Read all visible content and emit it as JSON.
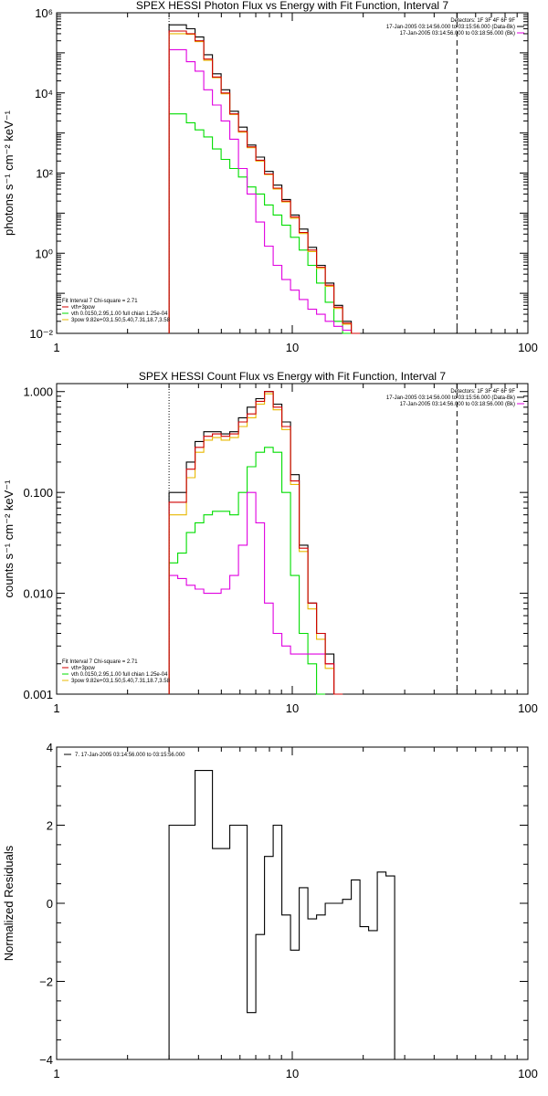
{
  "colors": {
    "data": "#000000",
    "total": "#d00000",
    "vth": "#00dd00",
    "pow": "#e000e0",
    "alt": "#e8b800"
  },
  "chart_data": [
    {
      "type": "line",
      "title": "SPEX HESSI Photon Flux vs Energy with Fit Function, Interval 7",
      "xlabel": "",
      "ylabel": "photons s⁻¹ cm⁻² keV⁻¹",
      "x_scale": "log",
      "y_scale": "log",
      "xlim": [
        1,
        100
      ],
      "ylim": [
        0.01,
        1000000
      ],
      "x_tick_labels": [
        "1",
        "10",
        "100"
      ],
      "y_tick_labels": [
        "10⁶",
        "10⁴",
        "10²",
        "10⁰",
        "10⁻²"
      ],
      "y_tick_values": [
        1000000,
        10000,
        100,
        1,
        0.01
      ],
      "energy_start": 3.0,
      "energy_step_ratio": 1.0885,
      "vertical_lines": [
        {
          "x": 3.0,
          "style": "dotted"
        },
        {
          "x": 50.0,
          "style": "dashed"
        }
      ],
      "legend_top": [
        "Detectors: 1F 3F 4F 6F 9F",
        "17-Jan-2005 03:14:56.000 to 03:15:56.000 (Data-Bk)",
        "17-Jan-2005 03:14:56.000 to 03:18:56.000 (Bk)"
      ],
      "legend_bottom": [
        "Fit Interval 7   Chi-square = 2.71",
        "vth+3pow",
        "vth 0.0150,2.95,1.00  full chian 1.25e-04",
        "3pow 9.82e+03,1.50,5.40,7.31,18.7,3.58"
      ],
      "series": [
        {
          "name": "17-Jan-2005 03:14:56.000 to 03:15:56.000 (Data-Bk)",
          "values": [
            500000,
            500000,
            400000,
            250000,
            90000,
            30000,
            12000,
            3500,
            1400,
            500,
            250,
            110,
            50,
            22,
            9,
            4,
            1.4,
            0.5,
            0.18,
            0.05,
            0.02,
            0.01
          ]
        },
        {
          "name": "vth+3pow",
          "values": [
            350000,
            350000,
            300000,
            200000,
            70000,
            25000,
            10000,
            3000,
            1100,
            450,
            210,
            95,
            42,
            20,
            8,
            3.3,
            1.2,
            0.45,
            0.16,
            0.045,
            0.018,
            0.009
          ]
        },
        {
          "name": "vth 0.0150,2.95,1.00  full chian 1.25e-04",
          "values": [
            3000,
            3000,
            1800,
            1200,
            800,
            400,
            220,
            130,
            80,
            45,
            30,
            16,
            9,
            5,
            2.5,
            1.2,
            0.5,
            0.18,
            0.06,
            0.02,
            0.01,
            0.005
          ]
        },
        {
          "name": "3pow 9.82e+03,1.50,5.40,7.31,18.7,3.58",
          "values": [
            120000,
            120000,
            60000,
            35000,
            12000,
            5000,
            2000,
            700,
            130,
            30,
            6,
            1.5,
            0.5,
            0.22,
            0.12,
            0.07,
            0.04,
            0.03,
            0.02,
            0.015,
            0.012,
            0.009
          ]
        },
        {
          "name": "",
          "values": [
            300000,
            300000,
            290000,
            190000,
            65000,
            24000,
            9500,
            2900,
            1050,
            430,
            200,
            92,
            40,
            19,
            7.5,
            3.1,
            1.1,
            0.42,
            0.15,
            0.042,
            0.017,
            0.008
          ]
        }
      ]
    },
    {
      "type": "line",
      "title": "SPEX HESSI Count Flux vs Energy with Fit Function, Interval 7",
      "xlabel": "",
      "ylabel": "counts s⁻¹ cm⁻² keV⁻¹",
      "x_scale": "log",
      "y_scale": "log",
      "xlim": [
        1,
        100
      ],
      "ylim": [
        0.001,
        1.2
      ],
      "x_tick_labels": [
        "1",
        "10",
        "100"
      ],
      "y_tick_labels": [
        "1.000",
        "0.100",
        "0.010",
        "0.001"
      ],
      "y_tick_values": [
        1,
        0.1,
        0.01,
        0.001
      ],
      "energy_start": 3.0,
      "energy_step_ratio": 1.0885,
      "vertical_lines": [
        {
          "x": 3.0,
          "style": "dotted"
        },
        {
          "x": 50.0,
          "style": "dashed"
        }
      ],
      "legend_top": [
        "Detectors: 1F 3F 4F 6F 9F",
        "17-Jan-2005 03:14:56.000 to 03:15:56.000 (Data-Bk)",
        "17-Jan-2005 03:14:56.000 to 03:18:56.000 (Bk)"
      ],
      "legend_bottom": [
        "Fit Interval 7   Chi-square = 2.71",
        "vth+3pow",
        "vth 0.0150,2.95,1.00  full chian 1.25e-04",
        "3pow 9.82e+03,1.50,5.40,7.31,18.7,3.58"
      ],
      "series": [
        {
          "name": "17-Jan-2005 03:14:56.000 to 03:15:56.000 (Data-Bk)",
          "values": [
            0.1,
            0.1,
            0.2,
            0.32,
            0.4,
            0.4,
            0.38,
            0.4,
            0.55,
            0.7,
            0.85,
            1.0,
            0.75,
            0.5,
            0.15,
            0.03,
            0.008,
            0.004,
            0.0025,
            0.001
          ]
        },
        {
          "name": "vth+3pow",
          "values": [
            0.08,
            0.08,
            0.17,
            0.28,
            0.36,
            0.38,
            0.36,
            0.38,
            0.5,
            0.6,
            0.8,
            1.0,
            0.7,
            0.45,
            0.13,
            0.028,
            0.008,
            0.004,
            0.002,
            0.001
          ]
        },
        {
          "name": "vth 0.0150,2.95,1.00  full chian 1.25e-04",
          "values": [
            0.02,
            0.025,
            0.04,
            0.05,
            0.06,
            0.065,
            0.065,
            0.06,
            0.1,
            0.18,
            0.25,
            0.28,
            0.25,
            0.1,
            0.015,
            0.004,
            0.002,
            0.001
          ]
        },
        {
          "name": "3pow 9.82e+03,1.50,5.40,7.31,18.7,3.58",
          "values": [
            0.015,
            0.014,
            0.012,
            0.011,
            0.01,
            0.01,
            0.011,
            0.015,
            0.03,
            0.1,
            0.05,
            0.008,
            0.004,
            0.003,
            0.0025,
            0.0025,
            0.0025,
            0.0025,
            0.002,
            0.001
          ]
        },
        {
          "name": "",
          "values": [
            0.06,
            0.06,
            0.14,
            0.25,
            0.33,
            0.35,
            0.33,
            0.35,
            0.45,
            0.55,
            0.75,
            0.95,
            0.66,
            0.42,
            0.12,
            0.026,
            0.007,
            0.0035,
            0.0018,
            0.001
          ]
        }
      ]
    },
    {
      "type": "line",
      "title": "",
      "xlabel": "",
      "ylabel": "Normalized Residuals",
      "x_scale": "log",
      "y_scale": "linear",
      "xlim": [
        1,
        100
      ],
      "ylim": [
        -4,
        4
      ],
      "x_tick_labels": [
        "1",
        "10",
        "100"
      ],
      "y_tick_labels": [
        "4",
        "2",
        "0",
        "−2",
        "−4"
      ],
      "y_tick_values": [
        4,
        2,
        0,
        -2,
        -4
      ],
      "energy_start": 3.0,
      "energy_step_ratio": 1.0885,
      "vertical_lines": [],
      "legend_top": [
        "7. 17-Jan-2005 03:14:56.000 to 03:15:56.000"
      ],
      "legend_bottom": [],
      "series": [
        {
          "name": "7. 17-Jan-2005 03:14:56.000 to 03:15:56.000",
          "values": [
            2.0,
            2.0,
            2.0,
            3.4,
            3.4,
            1.4,
            1.4,
            2.0,
            2.0,
            -2.8,
            -0.8,
            1.2,
            2.0,
            -0.3,
            -1.2,
            0.4,
            -0.4,
            -0.3,
            0.0,
            0.0,
            0.1,
            0.6,
            -0.6,
            -0.7,
            0.8,
            0.7
          ]
        }
      ]
    }
  ]
}
